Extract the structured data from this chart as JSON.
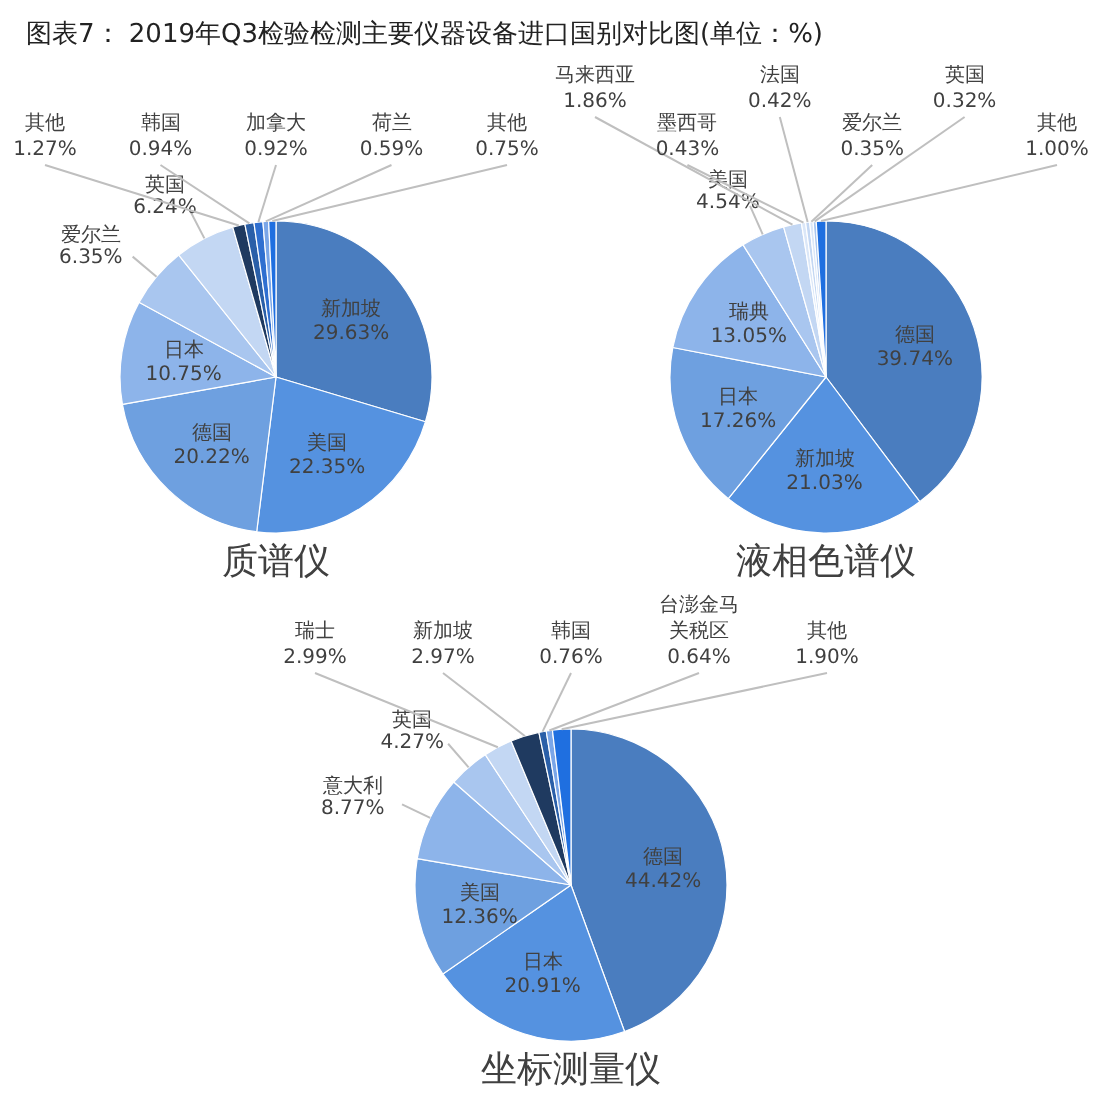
{
  "chart_data": [
    {
      "type": "pie",
      "title": "质谱仪",
      "annotations": [
        "图表7： 2019年Q3检验检测主要仪器设备进口国别对比图(单位：%)"
      ],
      "categories": [
        "新加坡",
        "美国",
        "德国",
        "日本",
        "爱尔兰",
        "英国",
        "其他",
        "韩国",
        "加拿大",
        "荷兰",
        "其他"
      ],
      "values": [
        29.63,
        22.35,
        20.22,
        10.75,
        6.35,
        6.24,
        1.27,
        0.94,
        0.92,
        0.59,
        0.75
      ],
      "value_labels": [
        "29.63%",
        "22.35%",
        "20.22%",
        "10.75%",
        "6.35%",
        "6.24%",
        "1.27%",
        "0.94%",
        "0.92%",
        "0.59%",
        "0.75%"
      ],
      "colors": [
        "#4a7dbf",
        "#5592e0",
        "#6ea0e0",
        "#8db4ea",
        "#a9c6ef",
        "#c3d7f3",
        "#1f3a60",
        "#2a5fa8",
        "#2f6fd0",
        "#7aa6e8",
        "#1f6fe0"
      ]
    },
    {
      "type": "pie",
      "title": "液相色谱仪",
      "categories": [
        "德国",
        "新加坡",
        "日本",
        "瑞典",
        "美国",
        "马来西亚",
        "墨西哥",
        "法国",
        "爱尔兰",
        "英国",
        "其他"
      ],
      "values": [
        39.74,
        21.03,
        17.26,
        13.05,
        4.54,
        1.86,
        0.43,
        0.42,
        0.35,
        0.32,
        1.0
      ],
      "value_labels": [
        "39.74%",
        "21.03%",
        "17.26%",
        "13.05%",
        "4.54%",
        "1.86%",
        "0.43%",
        "0.42%",
        "0.35%",
        "0.32%",
        "1.00%"
      ],
      "colors": [
        "#4a7dbf",
        "#5592e0",
        "#6ea0e0",
        "#8db4ea",
        "#a9c6ef",
        "#c3d7f3",
        "#dbe7f8",
        "#c3d7f3",
        "#dbe7f8",
        "#a9c6ef",
        "#1f6fe0"
      ]
    },
    {
      "type": "pie",
      "title": "坐标测量仪",
      "categories": [
        "德国",
        "日本",
        "美国",
        "意大利",
        "英国",
        "瑞士",
        "新加坡",
        "韩国",
        "台澎金马关税区",
        "其他"
      ],
      "values": [
        44.42,
        20.91,
        12.36,
        8.77,
        4.27,
        2.99,
        2.97,
        0.76,
        0.64,
        1.9
      ],
      "value_labels": [
        "44.42%",
        "20.91%",
        "12.36%",
        "8.77%",
        "4.27%",
        "2.99%",
        "2.97%",
        "0.76%",
        "0.64%",
        "1.90%"
      ],
      "colors": [
        "#4a7dbf",
        "#5592e0",
        "#6ea0e0",
        "#8db4ea",
        "#a9c6ef",
        "#c3d7f3",
        "#1f3a60",
        "#2a5fa8",
        "#7aa6e8",
        "#1f6fe0"
      ]
    }
  ]
}
